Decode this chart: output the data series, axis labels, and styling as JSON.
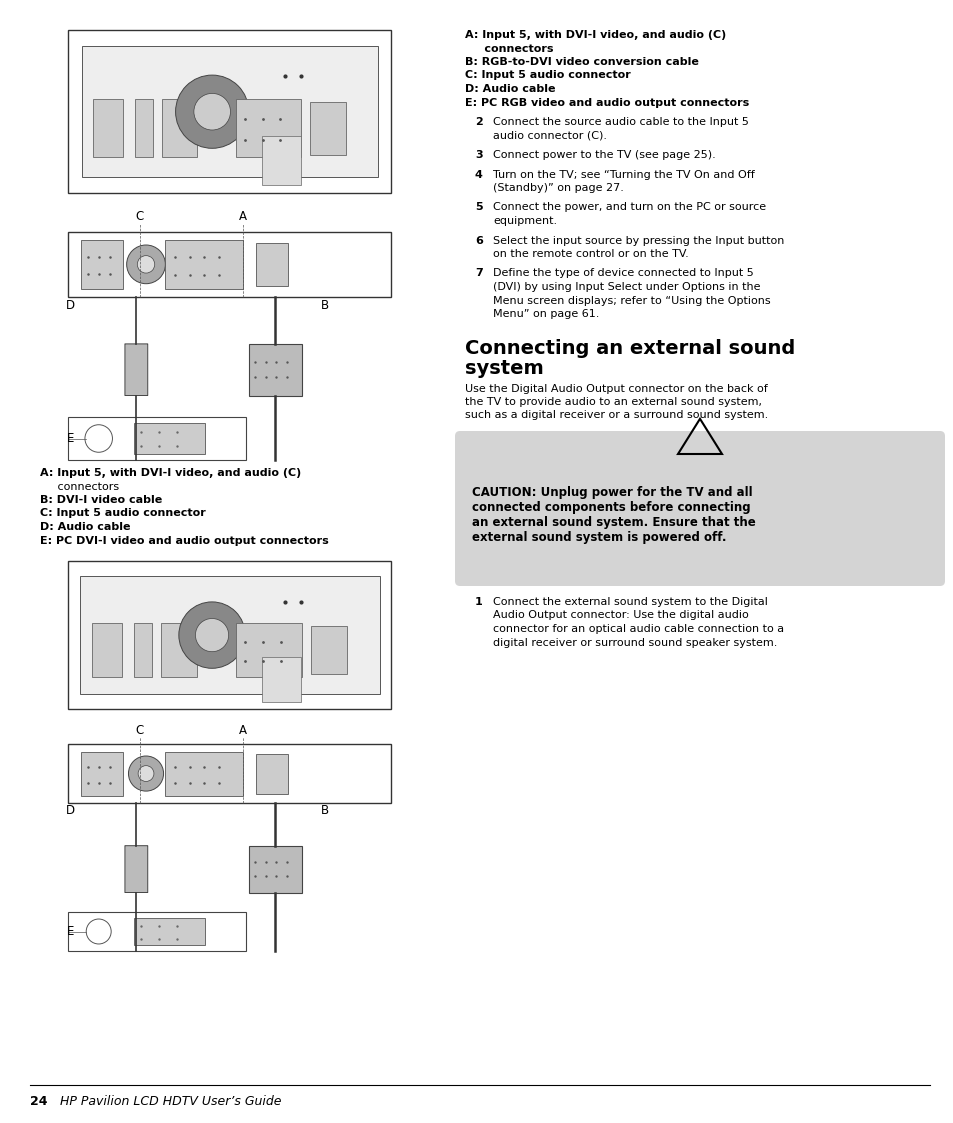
{
  "page_bg": "#ffffff",
  "page_number": "24",
  "page_footer": "HP Pavilion LCD HDTV User’s Guide",
  "right_captions": [
    {
      "bold": true,
      "text": "A: Input 5, with DVI-I video, and audio (C)"
    },
    {
      "bold": true,
      "text": "     connectors"
    },
    {
      "bold": true,
      "text": "B: RGB-to-DVI video conversion cable"
    },
    {
      "bold": true,
      "text": "C: Input 5 audio connector"
    },
    {
      "bold": true,
      "text": "D: Audio cable"
    },
    {
      "bold": true,
      "text": "E: PC RGB video and audio output connectors"
    }
  ],
  "right_steps": [
    {
      "num": "2",
      "text": "Connect the source audio cable to the Input 5\naudio connector (C)."
    },
    {
      "num": "3",
      "text": "Connect power to the TV (see page 25)."
    },
    {
      "num": "4",
      "text": "Turn on the TV; see “Turning the TV On and Off\n(Standby)” on page 27."
    },
    {
      "num": "5",
      "text": "Connect the power, and turn on the PC or source\nequipment."
    },
    {
      "num": "6",
      "text": "Select the input source by pressing the Input button\non the remote control or on the TV."
    },
    {
      "num": "7",
      "text": "Define the type of device connected to Input 5\n(DVI) by using Input Select under Options in the\nMenu screen displays; refer to “Using the Options\nMenu” on page 61."
    }
  ],
  "left_captions1": [
    {
      "bold": true,
      "text": "A: Input 5, with DVI-I video, and audio (C)"
    },
    {
      "bold": false,
      "text": "     connectors"
    },
    {
      "bold": true,
      "text": "B: DVI-I video cable"
    },
    {
      "bold": true,
      "text": "C: Input 5 audio connector"
    },
    {
      "bold": true,
      "text": "D: Audio cable"
    },
    {
      "bold": true,
      "text": "E: PC DVI-I video and audio output connectors"
    }
  ],
  "section_title": "Connecting an external sound\nsystem",
  "section_intro": "Use the Digital Audio Output connector on the back of\nthe TV to provide audio to an external sound system,\nsuch as a digital receiver or a surround sound system.",
  "caution_text": "CAUTION: Unplug power for the TV and all\nconnected components before connecting\nan external sound system. Ensure that the\nexternal sound system is powered off.",
  "caution_bg": "#d4d4d4",
  "step1_text": "Connect the external sound system to the Digital\nAudio Output connector: Use the digital audio\nconnector for an optical audio cable connection to a\ndigital receiver or surround sound speaker system."
}
